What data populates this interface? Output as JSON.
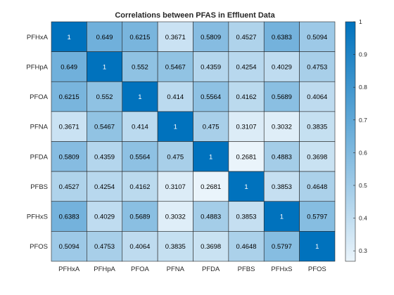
{
  "chart_data": {
    "type": "heatmap",
    "title": "Correlations between PFAS in Effluent Data",
    "xlabel": "",
    "ylabel": "",
    "x_categories": [
      "PFHxA",
      "PFHpA",
      "PFOA",
      "PFNA",
      "PFDA",
      "PFBS",
      "PFHxS",
      "PFOS"
    ],
    "y_categories": [
      "PFHxA",
      "PFHpA",
      "PFOA",
      "PFNA",
      "PFDA",
      "PFBS",
      "PFHxS",
      "PFOS"
    ],
    "values": [
      [
        1,
        0.649,
        0.6215,
        0.3671,
        0.5809,
        0.4527,
        0.6383,
        0.5094
      ],
      [
        0.649,
        1,
        0.552,
        0.5467,
        0.4359,
        0.4254,
        0.4029,
        0.4753
      ],
      [
        0.6215,
        0.552,
        1,
        0.414,
        0.5564,
        0.4162,
        0.5689,
        0.4064
      ],
      [
        0.3671,
        0.5467,
        0.414,
        1,
        0.475,
        0.3107,
        0.3032,
        0.3835
      ],
      [
        0.5809,
        0.4359,
        0.5564,
        0.475,
        1,
        0.2681,
        0.4883,
        0.3698
      ],
      [
        0.4527,
        0.4254,
        0.4162,
        0.3107,
        0.2681,
        1,
        0.3853,
        0.4648
      ],
      [
        0.6383,
        0.4029,
        0.5689,
        0.3032,
        0.4883,
        0.3853,
        1,
        0.5797
      ],
      [
        0.5094,
        0.4753,
        0.4064,
        0.3835,
        0.3698,
        0.4648,
        0.5797,
        1
      ]
    ],
    "colorbar": {
      "range": [
        0.2681,
        1
      ],
      "ticks": [
        0.3,
        0.4,
        0.5,
        0.6,
        0.7,
        0.8,
        0.9,
        1
      ],
      "tick_labels": [
        "0.3",
        "0.4",
        "0.5",
        "0.6",
        "0.7",
        "0.8",
        "0.9",
        "1"
      ],
      "low_color": "#eaf4fb",
      "high_color": "#0072bd"
    },
    "grid": true
  }
}
